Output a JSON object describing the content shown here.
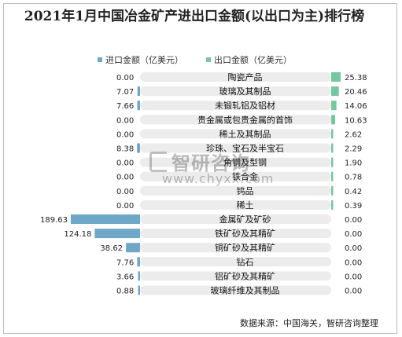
{
  "chart_data": {
    "type": "bar",
    "title": "2021年1月中国冶金矿产进出口金额(以出口为主)排行榜",
    "categories": [
      "陶瓷产品",
      "玻璃及其制品",
      "未锻轧铝及铝材",
      "贵金属或包贵金属的首饰",
      "稀土及其制品",
      "珍珠、宝石及半宝石",
      "角钢及型钢",
      "铁合金",
      "钨品",
      "稀土",
      "金属矿及矿砂",
      "铁矿砂及其精矿",
      "铜矿砂及其精矿",
      "钻石",
      "铝矿砂及其精矿",
      "玻璃纤维及其制品"
    ],
    "series": [
      {
        "name": "进口金额（亿美元）",
        "color": "#6fa8c7",
        "values": [
          0.0,
          7.07,
          7.66,
          0.0,
          0.0,
          8.38,
          0.0,
          0.0,
          0.0,
          0.0,
          189.63,
          124.18,
          38.62,
          7.76,
          3.66,
          0.88
        ],
        "labels": [
          "0.00",
          "7.07",
          "7.66",
          "0.00",
          "0.00",
          "8.38",
          "0.00",
          "0.00",
          "0.00",
          "0.00",
          "189.63",
          "124.18",
          "38.62",
          "7.76",
          "3.66",
          "0.88"
        ]
      },
      {
        "name": "出口金额（亿美元）",
        "color": "#76c7a1",
        "values": [
          25.38,
          20.46,
          14.06,
          10.63,
          2.62,
          2.29,
          1.9,
          0.78,
          0.42,
          0.39,
          0.0,
          0.0,
          0.0,
          0.0,
          0.0,
          0.0
        ],
        "labels": [
          "25.38",
          "20.46",
          "14.06",
          "10.63",
          "2.62",
          "2.29",
          "1.90",
          "0.78",
          "0.42",
          "0.39",
          "0.00",
          "0.00",
          "0.00",
          "0.00",
          "0.00",
          "0.00"
        ]
      }
    ],
    "band_color": "#ececec"
  },
  "watermark": {
    "brand": "智研咨询",
    "url": "www.chyxx.com"
  },
  "source": "数据来源：中国海关，智研咨询整理"
}
